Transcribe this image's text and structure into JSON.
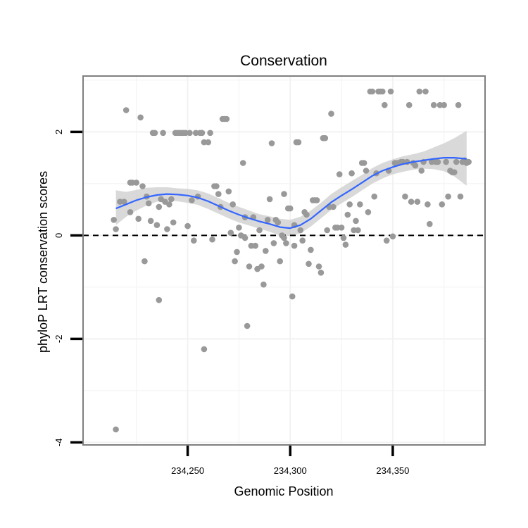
{
  "chart_data": {
    "type": "scatter",
    "title": "Conservation",
    "xlabel": "Genomic Position",
    "ylabel": "phyloP LRT conservation scores",
    "xlim": [
      234199,
      234395
    ],
    "ylim": [
      -4.05,
      3.08
    ],
    "x_ticks": [
      234250,
      234300,
      234350
    ],
    "x_tick_labels": [
      "234,250",
      "234,300",
      "234,350"
    ],
    "y_ticks": [
      -4,
      -2,
      0,
      2
    ],
    "y_tick_labels": [
      "-4",
      "-2",
      "0",
      "2"
    ],
    "grid": true,
    "reference_line": {
      "y": 0,
      "style": "dashed"
    },
    "colors": {
      "points": "#999999",
      "smooth_line": "#3366ff",
      "band": "#cccccc",
      "panel_border": "#7f7f7f",
      "grid": "#f2f2f2"
    },
    "points": [
      [
        234215,
        -3.75
      ],
      [
        234214,
        0.3
      ],
      [
        234215,
        0.12
      ],
      [
        234217,
        0.65
      ],
      [
        234219,
        0.65
      ],
      [
        234220,
        2.42
      ],
      [
        234222,
        1.02
      ],
      [
        234223,
        1.02
      ],
      [
        234225,
        1.02
      ],
      [
        234222,
        0.45
      ],
      [
        234226,
        0.32
      ],
      [
        234228,
        0.95
      ],
      [
        234229,
        -0.5
      ],
      [
        234227,
        2.28
      ],
      [
        234230,
        0.75
      ],
      [
        234231,
        0.62
      ],
      [
        234232,
        0.28
      ],
      [
        234233,
        1.98
      ],
      [
        234234,
        1.98
      ],
      [
        234236,
        0.55
      ],
      [
        234235,
        0.2
      ],
      [
        234237,
        0.7
      ],
      [
        234236,
        -1.25
      ],
      [
        234238,
        1.98
      ],
      [
        234239,
        0.65
      ],
      [
        234240,
        0.12
      ],
      [
        234241,
        0.6
      ],
      [
        234242,
        0.7
      ],
      [
        234243,
        0.25
      ],
      [
        234244,
        1.98
      ],
      [
        234245,
        1.98
      ],
      [
        234246,
        1.98
      ],
      [
        234247,
        1.98
      ],
      [
        234248,
        1.98
      ],
      [
        234249,
        1.98
      ],
      [
        234250,
        0.18
      ],
      [
        234251,
        1.98
      ],
      [
        234252,
        0.68
      ],
      [
        234253,
        -0.1
      ],
      [
        234254,
        1.98
      ],
      [
        234255,
        0.75
      ],
      [
        234256,
        1.98
      ],
      [
        234257,
        1.98
      ],
      [
        234258,
        1.8
      ],
      [
        234258,
        -2.2
      ],
      [
        234260,
        1.8
      ],
      [
        234261,
        1.98
      ],
      [
        234262,
        -0.08
      ],
      [
        234263,
        0.95
      ],
      [
        234264,
        0.95
      ],
      [
        234265,
        0.8
      ],
      [
        234266,
        0.55
      ],
      [
        234267,
        2.25
      ],
      [
        234268,
        2.25
      ],
      [
        234269,
        2.25
      ],
      [
        234270,
        0.85
      ],
      [
        234271,
        0.05
      ],
      [
        234272,
        0.6
      ],
      [
        234273,
        -0.5
      ],
      [
        234274,
        -0.32
      ],
      [
        234275,
        0.15
      ],
      [
        234276,
        0.0
      ],
      [
        234277,
        1.4
      ],
      [
        234278,
        -0.05
      ],
      [
        234278,
        0.35
      ],
      [
        234279,
        -1.75
      ],
      [
        234280,
        -0.6
      ],
      [
        234281,
        -0.2
      ],
      [
        234282,
        0.35
      ],
      [
        234283,
        -0.2
      ],
      [
        234284,
        -0.65
      ],
      [
        234285,
        0.1
      ],
      [
        234286,
        -0.6
      ],
      [
        234287,
        -0.95
      ],
      [
        234288,
        -0.3
      ],
      [
        234289,
        0.3
      ],
      [
        234290,
        0.7
      ],
      [
        234291,
        1.78
      ],
      [
        234292,
        -0.15
      ],
      [
        234293,
        0.3
      ],
      [
        234294,
        0.25
      ],
      [
        234295,
        -0.5
      ],
      [
        234296,
        0.0
      ],
      [
        234297,
        -0.05
      ],
      [
        234297,
        0.8
      ],
      [
        234298,
        -0.15
      ],
      [
        234299,
        0.52
      ],
      [
        234300,
        0.52
      ],
      [
        234301,
        -1.18
      ],
      [
        234302,
        -0.2
      ],
      [
        234302,
        0.2
      ],
      [
        234303,
        1.8
      ],
      [
        234304,
        1.8
      ],
      [
        234305,
        0.1
      ],
      [
        234306,
        -0.1
      ],
      [
        234307,
        0.45
      ],
      [
        234308,
        0.4
      ],
      [
        234309,
        -0.55
      ],
      [
        234310,
        -0.28
      ],
      [
        234311,
        0.68
      ],
      [
        234312,
        0.68
      ],
      [
        234313,
        0.68
      ],
      [
        234314,
        -0.6
      ],
      [
        234315,
        -0.72
      ],
      [
        234316,
        1.88
      ],
      [
        234317,
        1.88
      ],
      [
        234318,
        0.1
      ],
      [
        234319,
        0.55
      ],
      [
        234320,
        2.35
      ],
      [
        234321,
        0.55
      ],
      [
        234322,
        0.15
      ],
      [
        234323,
        0.15
      ],
      [
        234324,
        1.18
      ],
      [
        234325,
        0.15
      ],
      [
        234326,
        -0.05
      ],
      [
        234327,
        -0.18
      ],
      [
        234328,
        0.4
      ],
      [
        234329,
        0.6
      ],
      [
        234330,
        1.2
      ],
      [
        234331,
        0.1
      ],
      [
        234332,
        0.28
      ],
      [
        234333,
        0.1
      ],
      [
        234334,
        0.6
      ],
      [
        234335,
        1.4
      ],
      [
        234336,
        1.4
      ],
      [
        234337,
        1.25
      ],
      [
        234338,
        0.45
      ],
      [
        234339,
        2.78
      ],
      [
        234340,
        2.78
      ],
      [
        234341,
        0.75
      ],
      [
        234342,
        1.2
      ],
      [
        234343,
        2.78
      ],
      [
        234344,
        2.78
      ],
      [
        234345,
        2.78
      ],
      [
        234346,
        2.52
      ],
      [
        234347,
        -0.1
      ],
      [
        234348,
        1.25
      ],
      [
        234349,
        2.78
      ],
      [
        234350,
        -0.02
      ],
      [
        234351,
        1.4
      ],
      [
        234352,
        1.4
      ],
      [
        234353,
        1.4
      ],
      [
        234354,
        1.42
      ],
      [
        234355,
        1.42
      ],
      [
        234356,
        0.75
      ],
      [
        234357,
        1.42
      ],
      [
        234358,
        2.52
      ],
      [
        234359,
        0.65
      ],
      [
        234360,
        1.4
      ],
      [
        234361,
        1.35
      ],
      [
        234362,
        0.65
      ],
      [
        234363,
        2.78
      ],
      [
        234364,
        1.25
      ],
      [
        234365,
        1.42
      ],
      [
        234366,
        2.78
      ],
      [
        234367,
        0.6
      ],
      [
        234368,
        0.22
      ],
      [
        234369,
        1.42
      ],
      [
        234370,
        2.52
      ],
      [
        234371,
        1.42
      ],
      [
        234372,
        1.42
      ],
      [
        234373,
        2.52
      ],
      [
        234374,
        0.6
      ],
      [
        234375,
        2.52
      ],
      [
        234376,
        1.42
      ],
      [
        234377,
        0.75
      ],
      [
        234378,
        1.25
      ],
      [
        234379,
        1.22
      ],
      [
        234380,
        1.22
      ],
      [
        234381,
        1.42
      ],
      [
        234382,
        2.52
      ],
      [
        234383,
        0.75
      ],
      [
        234384,
        1.42
      ],
      [
        234385,
        1.45
      ],
      [
        234386,
        1.4
      ],
      [
        234387,
        1.42
      ]
    ],
    "smooth": [
      [
        234215,
        0.52
      ],
      [
        234220,
        0.6
      ],
      [
        234225,
        0.68
      ],
      [
        234230,
        0.74
      ],
      [
        234235,
        0.78
      ],
      [
        234240,
        0.8
      ],
      [
        234245,
        0.79
      ],
      [
        234250,
        0.77
      ],
      [
        234255,
        0.73
      ],
      [
        234260,
        0.66
      ],
      [
        234265,
        0.57
      ],
      [
        234270,
        0.48
      ],
      [
        234275,
        0.4
      ],
      [
        234280,
        0.33
      ],
      [
        234285,
        0.27
      ],
      [
        234290,
        0.22
      ],
      [
        234295,
        0.16
      ],
      [
        234300,
        0.14
      ],
      [
        234305,
        0.2
      ],
      [
        234310,
        0.32
      ],
      [
        234315,
        0.48
      ],
      [
        234320,
        0.64
      ],
      [
        234325,
        0.77
      ],
      [
        234330,
        0.89
      ],
      [
        234335,
        1.02
      ],
      [
        234340,
        1.15
      ],
      [
        234345,
        1.25
      ],
      [
        234350,
        1.32
      ],
      [
        234355,
        1.38
      ],
      [
        234360,
        1.42
      ],
      [
        234365,
        1.45
      ],
      [
        234370,
        1.48
      ],
      [
        234375,
        1.5
      ],
      [
        234380,
        1.5
      ],
      [
        234386,
        1.48
      ]
    ],
    "band": [
      [
        234215,
        0.2,
        0.87
      ],
      [
        234220,
        0.36,
        0.84
      ],
      [
        234225,
        0.48,
        0.88
      ],
      [
        234230,
        0.58,
        0.92
      ],
      [
        234235,
        0.65,
        0.93
      ],
      [
        234240,
        0.68,
        0.93
      ],
      [
        234245,
        0.66,
        0.91
      ],
      [
        234250,
        0.63,
        0.9
      ],
      [
        234255,
        0.59,
        0.87
      ],
      [
        234260,
        0.51,
        0.81
      ],
      [
        234265,
        0.42,
        0.72
      ],
      [
        234270,
        0.33,
        0.63
      ],
      [
        234275,
        0.25,
        0.55
      ],
      [
        234280,
        0.19,
        0.48
      ],
      [
        234285,
        0.13,
        0.41
      ],
      [
        234290,
        0.07,
        0.37
      ],
      [
        234295,
        0.0,
        0.32
      ],
      [
        234300,
        -0.01,
        0.3
      ],
      [
        234305,
        0.04,
        0.36
      ],
      [
        234310,
        0.17,
        0.48
      ],
      [
        234315,
        0.33,
        0.63
      ],
      [
        234320,
        0.49,
        0.8
      ],
      [
        234325,
        0.62,
        0.93
      ],
      [
        234330,
        0.74,
        1.05
      ],
      [
        234335,
        0.87,
        1.17
      ],
      [
        234340,
        1.0,
        1.3
      ],
      [
        234345,
        1.1,
        1.4
      ],
      [
        234350,
        1.18,
        1.47
      ],
      [
        234355,
        1.23,
        1.53
      ],
      [
        234360,
        1.27,
        1.57
      ],
      [
        234365,
        1.29,
        1.62
      ],
      [
        234370,
        1.28,
        1.7
      ],
      [
        234375,
        1.24,
        1.78
      ],
      [
        234380,
        1.14,
        1.88
      ],
      [
        234386,
        0.96,
        2.02
      ]
    ]
  }
}
